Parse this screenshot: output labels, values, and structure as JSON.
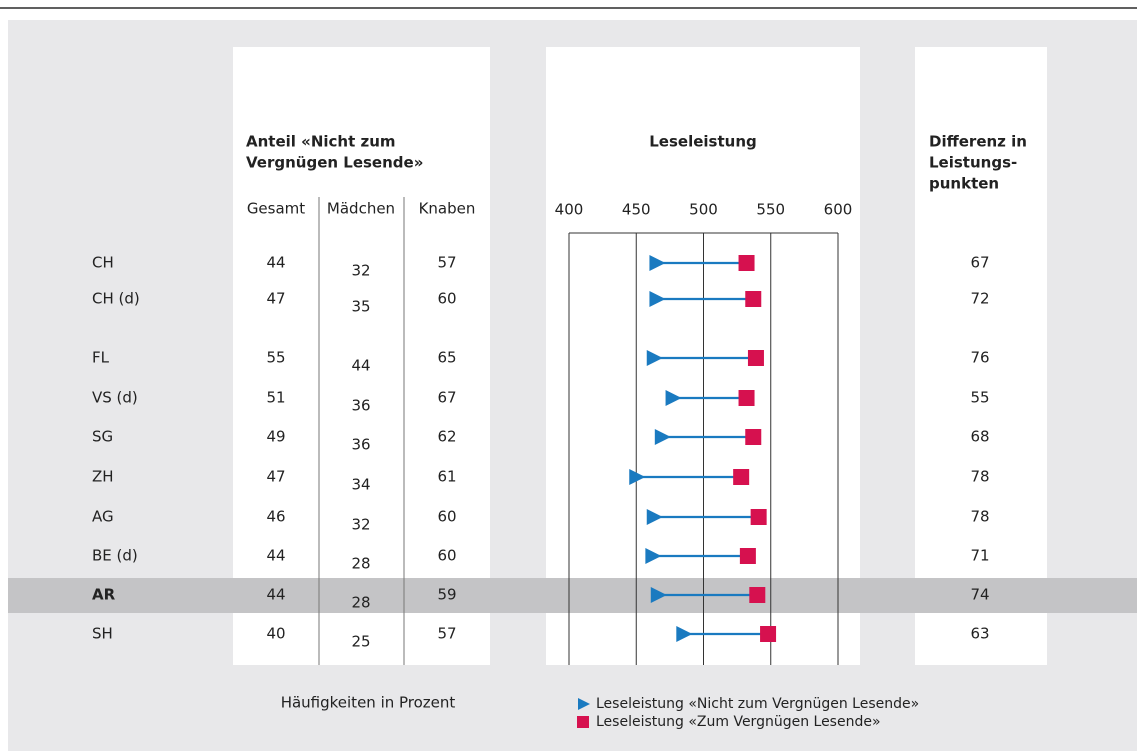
{
  "chart_data": {
    "type": "dumbbell",
    "title": "Leseleistung",
    "categories": [
      "CH",
      "CH (d)",
      "FL",
      "VS (d)",
      "SG",
      "ZH",
      "AG",
      "BE (d)",
      "AR",
      "SH"
    ],
    "highlight": "AR",
    "series": [
      {
        "name": "Leseleistung «Nicht zum Vergnügen Lesende»",
        "color": "#1a7ac0",
        "marker": "triangle",
        "values": [
          465,
          465,
          463,
          477,
          469,
          450,
          463,
          462,
          466,
          485
        ]
      },
      {
        "name": "Leseleistung «Zum Vergnügen Lesende»",
        "color": "#d6114f",
        "marker": "square",
        "values": [
          532,
          537,
          539,
          532,
          537,
          528,
          541,
          533,
          540,
          548
        ]
      }
    ],
    "xlim": [
      400,
      600
    ],
    "xticks": [
      400,
      450,
      500,
      550,
      600
    ],
    "grid": true
  },
  "table": {
    "title_lines": [
      "Anteil «Nicht zum",
      "Vergnügen Lesende»"
    ],
    "columns": [
      "Gesamt",
      "Mädchen",
      "Knaben"
    ],
    "rows": [
      [
        44,
        32,
        57
      ],
      [
        47,
        35,
        60
      ],
      [
        55,
        44,
        65
      ],
      [
        51,
        36,
        67
      ],
      [
        49,
        36,
        62
      ],
      [
        47,
        34,
        61
      ],
      [
        46,
        32,
        60
      ],
      [
        44,
        28,
        60
      ],
      [
        44,
        28,
        59
      ],
      [
        40,
        25,
        57
      ]
    ],
    "note": "Häufigkeiten in Prozent"
  },
  "difference": {
    "title_lines": [
      "Differenz in",
      "Leistungs-",
      "punkten"
    ],
    "values": [
      67,
      72,
      76,
      55,
      68,
      78,
      78,
      71,
      74,
      63
    ]
  }
}
